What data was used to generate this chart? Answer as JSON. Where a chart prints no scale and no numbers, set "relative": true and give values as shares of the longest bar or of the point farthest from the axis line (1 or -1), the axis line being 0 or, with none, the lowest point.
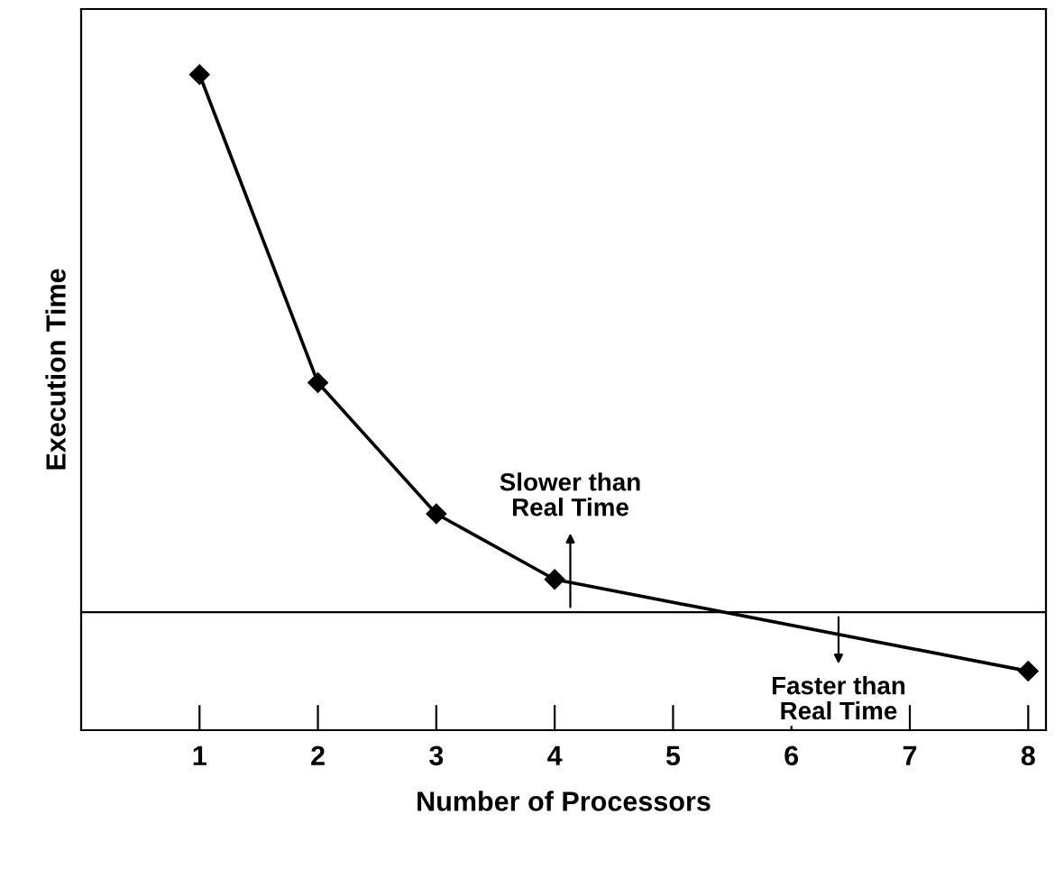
{
  "chart_data": {
    "type": "line",
    "relative": true,
    "xlabel": "Number of Processors",
    "ylabel": "Execution Time",
    "x": [
      1,
      2,
      3,
      4,
      8
    ],
    "values": [
      1,
      0.53,
      0.33,
      0.23,
      0.09
    ],
    "color": "#000000",
    "marker": "diamond",
    "line_style": "solid",
    "grid": false,
    "xlim": [
      0,
      8.15
    ],
    "xticks": [
      1,
      2,
      3,
      4,
      5,
      6,
      7,
      8
    ],
    "ref_lines": [
      {
        "axis": "y",
        "value": 0.18,
        "color": "#000000"
      }
    ],
    "annotations": [
      "Slower than\nReal Time",
      "Faster than\nReal Time"
    ]
  }
}
